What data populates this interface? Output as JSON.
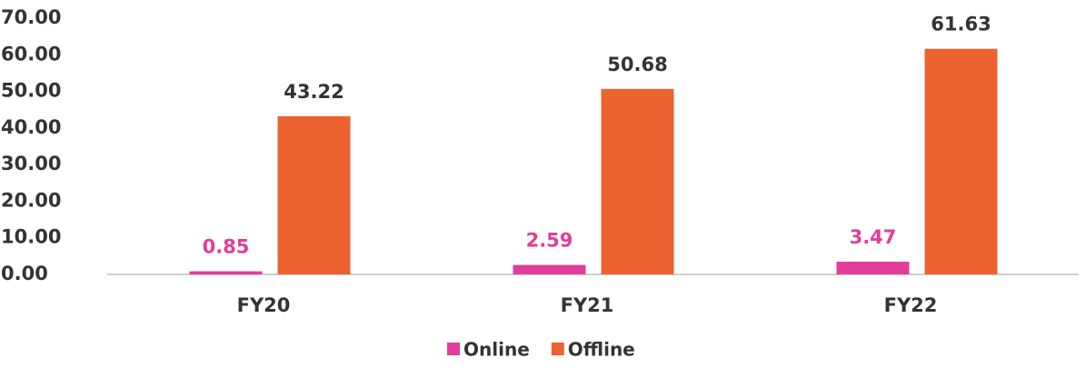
{
  "chart_data": {
    "type": "bar",
    "categories": [
      "FY20",
      "FY21",
      "FY22"
    ],
    "series": [
      {
        "name": "Online",
        "color": "#e23d9b",
        "values": [
          0.85,
          2.59,
          3.47
        ]
      },
      {
        "name": "Offline",
        "color": "#ec6230",
        "values": [
          43.22,
          50.68,
          61.63
        ]
      }
    ],
    "ylim": [
      0,
      70
    ],
    "yticks": [
      {
        "value": 0,
        "label": "0.00"
      },
      {
        "value": 10,
        "label": "10.00"
      },
      {
        "value": 20,
        "label": "20.00"
      },
      {
        "value": 30,
        "label": "30.00"
      },
      {
        "value": 40,
        "label": "40.00"
      },
      {
        "value": 50,
        "label": "50.00"
      },
      {
        "value": 60,
        "label": "60.00"
      },
      {
        "value": 70,
        "label": "70.00"
      }
    ],
    "grid": false,
    "legend": "bottom"
  }
}
